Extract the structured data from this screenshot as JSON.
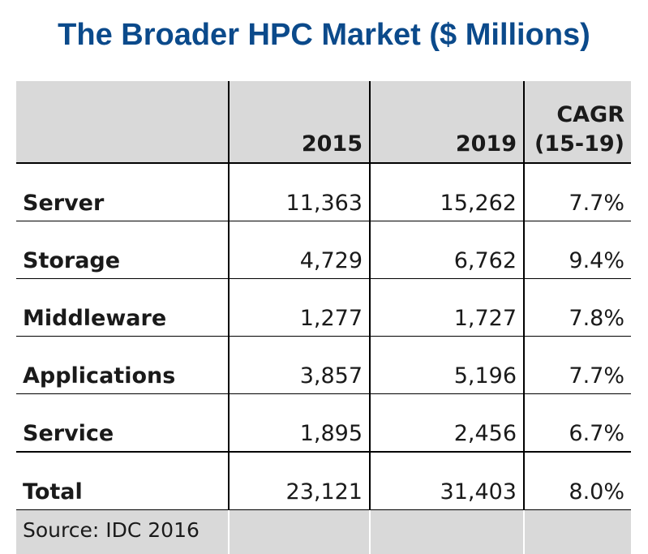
{
  "title": "The Broader HPC Market ($ Millions)",
  "chart_data": {
    "type": "table",
    "title": "The Broader HPC Market ($ Millions)",
    "columns": [
      "",
      "2015",
      "2019",
      "CAGR (15-19)"
    ],
    "columns_display": [
      "",
      [
        "2015"
      ],
      [
        "2019"
      ],
      [
        "CAGR",
        "(15-19)"
      ]
    ],
    "rows": [
      {
        "label": "Server",
        "values": [
          "11,363",
          "15,262",
          "7.7%"
        ]
      },
      {
        "label": "Storage",
        "values": [
          "4,729",
          "6,762",
          "9.4%"
        ]
      },
      {
        "label": "Middleware",
        "values": [
          "1,277",
          "1,727",
          "7.8%"
        ]
      },
      {
        "label": "Applications",
        "values": [
          "3,857",
          "5,196",
          "7.7%"
        ]
      },
      {
        "label": "Service",
        "values": [
          "1,895",
          "2,456",
          "6.7%"
        ]
      },
      {
        "label": "Total",
        "values": [
          "23,121",
          "31,403",
          "8.0%"
        ]
      }
    ],
    "source": "Source: IDC 2016"
  },
  "colors": {
    "title": "#0b4a8b",
    "header_fill": "#d9d9d9",
    "footer_fill": "#d9d9d9"
  }
}
